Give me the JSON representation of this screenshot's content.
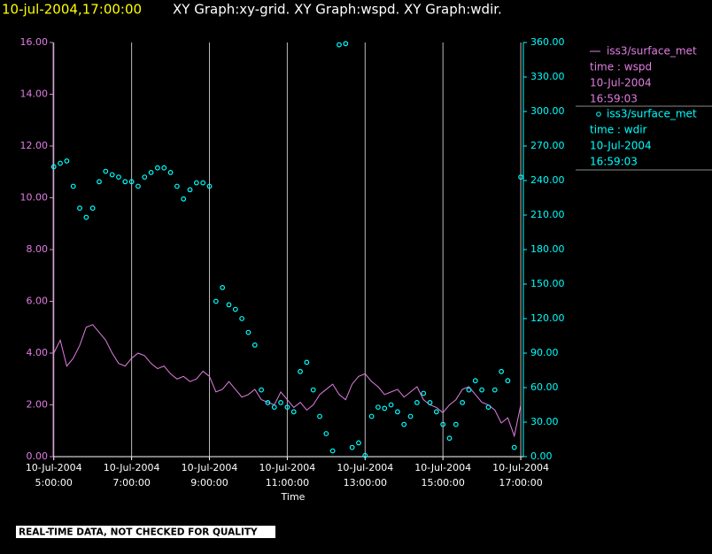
{
  "chart_data": {
    "type": "xy-time",
    "title_time": "10-jul-2004,17:00:00",
    "title": "XY Graph:xy-grid.  XY Graph:wspd.  XY Graph:wdir.",
    "x_label": "Time",
    "footer": "REAL-TIME DATA, NOT CHECKED FOR QUALITY",
    "grid": true,
    "xlim": [
      "2004-07-10 04:59:00",
      "2004-07-10 17:04:00"
    ],
    "xticks": [
      {
        "value": "2004-07-10 05:00:00",
        "label": [
          "10-Jul-2004",
          "5:00:00"
        ]
      },
      {
        "value": "2004-07-10 07:00:00",
        "label": [
          "10-Jul-2004",
          "7:00:00"
        ]
      },
      {
        "value": "2004-07-10 09:00:00",
        "label": [
          "10-Jul-2004",
          "9:00:00"
        ]
      },
      {
        "value": "2004-07-10 11:00:00",
        "label": [
          "10-Jul-2004",
          "11:00:00"
        ]
      },
      {
        "value": "2004-07-10 13:00:00",
        "label": [
          "10-Jul-2004",
          "13:00:00"
        ]
      },
      {
        "value": "2004-07-10 15:00:00",
        "label": [
          "10-Jul-2004",
          "15:00:00"
        ]
      },
      {
        "value": "2004-07-10 17:00:00",
        "label": [
          "10-Jul-2004",
          "17:00:00"
        ]
      }
    ],
    "ylim": [
      0,
      16
    ],
    "yticks": [
      {
        "value": 0,
        "label": "0.00"
      },
      {
        "value": 2,
        "label": "2.00"
      },
      {
        "value": 4,
        "label": "4.00"
      },
      {
        "value": 6,
        "label": "6.00"
      },
      {
        "value": 8,
        "label": "8.00"
      },
      {
        "value": 10,
        "label": "10.00"
      },
      {
        "value": 12,
        "label": "12.00"
      },
      {
        "value": 14,
        "label": "14.00"
      },
      {
        "value": 16,
        "label": "16.00"
      }
    ],
    "y2lim": [
      0,
      360
    ],
    "y2ticks": [
      {
        "value": 0,
        "label": "0.00"
      },
      {
        "value": 30,
        "label": "30.00"
      },
      {
        "value": 60,
        "label": "60.00"
      },
      {
        "value": 90,
        "label": "90.00"
      },
      {
        "value": 120,
        "label": "120.00"
      },
      {
        "value": 150,
        "label": "150.00"
      },
      {
        "value": 180,
        "label": "180.00"
      },
      {
        "value": 210,
        "label": "210.00"
      },
      {
        "value": 240,
        "label": "240.00"
      },
      {
        "value": 270,
        "label": "270.00"
      },
      {
        "value": 300,
        "label": "300.00"
      },
      {
        "value": 330,
        "label": "330.00"
      },
      {
        "value": 360,
        "label": "360.00"
      }
    ],
    "x": [
      "2004-07-10 05:00:00",
      "2004-07-10 05:10:00",
      "2004-07-10 05:20:00",
      "2004-07-10 05:30:00",
      "2004-07-10 05:40:00",
      "2004-07-10 05:50:00",
      "2004-07-10 06:00:00",
      "2004-07-10 06:10:00",
      "2004-07-10 06:20:00",
      "2004-07-10 06:30:00",
      "2004-07-10 06:40:00",
      "2004-07-10 06:50:00",
      "2004-07-10 07:00:00",
      "2004-07-10 07:10:00",
      "2004-07-10 07:20:00",
      "2004-07-10 07:30:00",
      "2004-07-10 07:40:00",
      "2004-07-10 07:50:00",
      "2004-07-10 08:00:00",
      "2004-07-10 08:10:00",
      "2004-07-10 08:20:00",
      "2004-07-10 08:30:00",
      "2004-07-10 08:40:00",
      "2004-07-10 08:50:00",
      "2004-07-10 09:00:00",
      "2004-07-10 09:10:00",
      "2004-07-10 09:20:00",
      "2004-07-10 09:30:00",
      "2004-07-10 09:40:00",
      "2004-07-10 09:50:00",
      "2004-07-10 10:00:00",
      "2004-07-10 10:10:00",
      "2004-07-10 10:20:00",
      "2004-07-10 10:30:00",
      "2004-07-10 10:40:00",
      "2004-07-10 10:50:00",
      "2004-07-10 11:00:00",
      "2004-07-10 11:10:00",
      "2004-07-10 11:20:00",
      "2004-07-10 11:30:00",
      "2004-07-10 11:40:00",
      "2004-07-10 11:50:00",
      "2004-07-10 12:00:00",
      "2004-07-10 12:10:00",
      "2004-07-10 12:20:00",
      "2004-07-10 12:30:00",
      "2004-07-10 12:40:00",
      "2004-07-10 12:50:00",
      "2004-07-10 13:00:00",
      "2004-07-10 13:10:00",
      "2004-07-10 13:20:00",
      "2004-07-10 13:30:00",
      "2004-07-10 13:40:00",
      "2004-07-10 13:50:00",
      "2004-07-10 14:00:00",
      "2004-07-10 14:10:00",
      "2004-07-10 14:20:00",
      "2004-07-10 14:30:00",
      "2004-07-10 14:40:00",
      "2004-07-10 14:50:00",
      "2004-07-10 15:00:00",
      "2004-07-10 15:10:00",
      "2004-07-10 15:20:00",
      "2004-07-10 15:30:00",
      "2004-07-10 15:40:00",
      "2004-07-10 15:50:00",
      "2004-07-10 16:00:00",
      "2004-07-10 16:10:00",
      "2004-07-10 16:20:00",
      "2004-07-10 16:30:00",
      "2004-07-10 16:40:00",
      "2004-07-10 16:50:00",
      "2004-07-10 17:00:00"
    ],
    "series": [
      {
        "name": "iss3/surface_met",
        "details": [
          "time : wspd",
          "10-Jul-2004",
          "16:59:03"
        ],
        "color": "#e07ee0",
        "mark": "line",
        "axis": "y",
        "values": [
          4.0,
          4.5,
          3.5,
          3.8,
          4.3,
          5.0,
          5.1,
          4.8,
          4.5,
          4.0,
          3.6,
          3.5,
          3.8,
          4.0,
          3.9,
          3.6,
          3.4,
          3.5,
          3.2,
          3.0,
          3.1,
          2.9,
          3.0,
          3.3,
          3.1,
          2.5,
          2.6,
          2.9,
          2.6,
          2.3,
          2.4,
          2.6,
          2.2,
          2.1,
          2.0,
          2.5,
          2.2,
          1.9,
          2.1,
          1.8,
          2.0,
          2.4,
          2.6,
          2.8,
          2.4,
          2.2,
          2.8,
          3.1,
          3.2,
          2.9,
          2.7,
          2.4,
          2.5,
          2.6,
          2.3,
          2.5,
          2.7,
          2.2,
          2.0,
          1.9,
          1.7,
          2.0,
          2.2,
          2.6,
          2.7,
          2.4,
          2.1,
          2.0,
          1.8,
          1.3,
          1.5,
          0.8,
          2.0
        ]
      },
      {
        "name": "iss3/surface_met",
        "details": [
          "time : wdir",
          "10-Jul-2004",
          "16:59:03"
        ],
        "color": "#00ffff",
        "mark": "circle",
        "axis": "y2",
        "values": [
          252,
          255,
          257,
          235,
          216,
          208,
          216,
          239,
          248,
          245,
          243,
          239,
          239,
          235,
          243,
          247,
          251,
          251,
          247,
          235,
          224,
          232,
          238,
          238,
          235,
          135,
          147,
          132,
          128,
          120,
          108,
          97,
          58,
          47,
          43,
          47,
          43,
          39,
          74,
          82,
          58,
          35,
          20,
          5,
          358,
          359,
          8,
          12,
          1,
          35,
          43,
          42,
          45,
          39,
          28,
          35,
          47,
          55,
          47,
          39,
          28,
          16,
          28,
          47,
          58,
          66,
          58,
          43,
          58,
          74,
          66,
          8,
          243
        ]
      }
    ]
  }
}
